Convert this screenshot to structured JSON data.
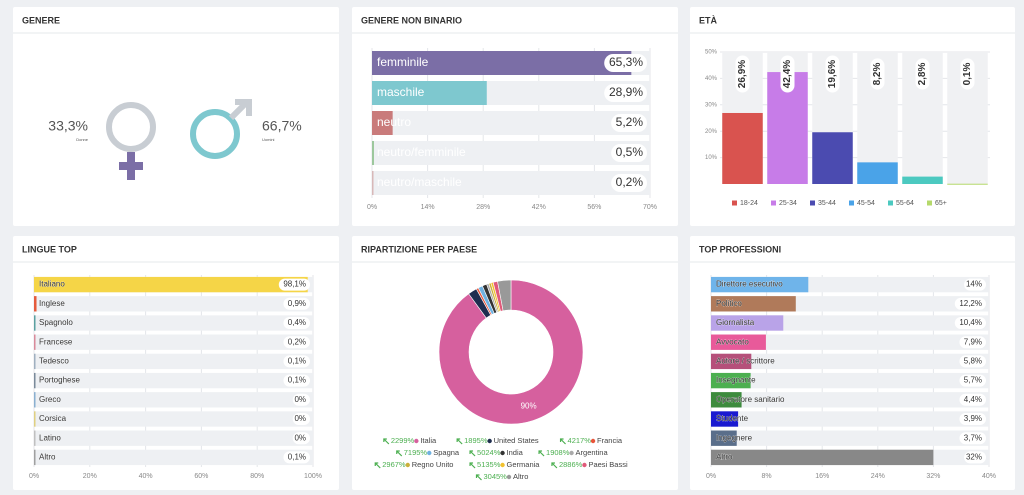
{
  "chart_data": [
    {
      "type": "pictogram",
      "title": "GENERE",
      "categories": [
        "Donne",
        "Uomini"
      ],
      "values": [
        33.3,
        66.7
      ],
      "value_labels": [
        "33,3%",
        "66,7%"
      ],
      "colors": [
        "#7b6ea6",
        "#7ec8cf"
      ]
    },
    {
      "type": "hbar",
      "title": "GENERE NON BINARIO",
      "categories": [
        "femminile",
        "maschile",
        "neutro",
        "neutro/femminile",
        "neutro/maschile"
      ],
      "values": [
        65.3,
        28.9,
        5.2,
        0.5,
        0.2
      ],
      "value_labels": [
        "65,3%",
        "28,9%",
        "5,2%",
        "0,5%",
        "0,2%"
      ],
      "colors": [
        "#7b6ea6",
        "#7ec8cf",
        "#c97b7b",
        "#9cc79c",
        "#d8b8b8"
      ],
      "xlim": [
        0,
        70
      ],
      "xticks": [
        {
          "value": 0,
          "label": "0%"
        },
        {
          "value": 14,
          "label": "14%"
        },
        {
          "value": 28,
          "label": "28%"
        },
        {
          "value": 42,
          "label": "42%"
        },
        {
          "value": 56,
          "label": "56%"
        },
        {
          "value": 70,
          "label": "70%"
        }
      ]
    },
    {
      "type": "bar",
      "title": "ETÀ",
      "categories": [
        "18-24",
        "25-34",
        "35-44",
        "45-54",
        "55-64",
        "65+"
      ],
      "values": [
        26.9,
        42.4,
        19.6,
        8.2,
        2.8,
        0.1
      ],
      "value_labels": [
        "26,9%",
        "42,4%",
        "19,6%",
        "8,2%",
        "2,8%",
        "0,1%"
      ],
      "colors": [
        "#d9534f",
        "#c77ce8",
        "#4b4bb0",
        "#4aa3e8",
        "#4cc9c0",
        "#b5d96b"
      ],
      "ylim": [
        0,
        50
      ],
      "yticks": [
        {
          "value": 10,
          "label": "10%"
        },
        {
          "value": 20,
          "label": "20%"
        },
        {
          "value": 30,
          "label": "30%"
        },
        {
          "value": 40,
          "label": "40%"
        },
        {
          "value": 50,
          "label": "50%"
        }
      ]
    },
    {
      "type": "hbar",
      "title": "LINGUE TOP",
      "categories": [
        "Italiano",
        "Inglese",
        "Spagnolo",
        "Francese",
        "Tedesco",
        "Portoghese",
        "Greco",
        "Corsica",
        "Latino",
        "Altro"
      ],
      "values": [
        98.1,
        0.9,
        0.4,
        0.2,
        0.1,
        0.1,
        0,
        0,
        0,
        0.1
      ],
      "value_labels": [
        "98,1%",
        "0,9%",
        "0,4%",
        "0,2%",
        "0,1%",
        "0,1%",
        "0%",
        "0%",
        "0%",
        "0,1%"
      ],
      "colors": [
        "#f5d547",
        "#e55b3c",
        "#5aa0a0",
        "#d98a9a",
        "#a0b0c0",
        "#7a8a9a",
        "#8ab0d0",
        "#e0d080",
        "#c0c0c0",
        "#a0a0a0"
      ],
      "xlim": [
        0,
        100
      ],
      "xticks": [
        {
          "value": 0,
          "label": "0%"
        },
        {
          "value": 20,
          "label": "20%"
        },
        {
          "value": 40,
          "label": "40%"
        },
        {
          "value": 60,
          "label": "60%"
        },
        {
          "value": 80,
          "label": "80%"
        },
        {
          "value": 100,
          "label": "100%"
        }
      ]
    },
    {
      "type": "donut",
      "title": "RIPARTIZIONE PER PAESE",
      "categories": [
        "Italia",
        "United States",
        "Francia",
        "Spagna",
        "India",
        "Argentina",
        "Regno Unito",
        "Germania",
        "Paesi Bassi",
        "Altro"
      ],
      "values": [
        90,
        2,
        0.5,
        1,
        1,
        0.5,
        0.5,
        0.5,
        1,
        3
      ],
      "value_labels": [
        "90%",
        null,
        null,
        null,
        null,
        null,
        null,
        null,
        null,
        null
      ],
      "trends": [
        "2299%",
        "1895%",
        "4217%",
        "7195%",
        "5024%",
        "1908%",
        "2967%",
        "5135%",
        "2886%",
        "3045%"
      ],
      "colors": [
        "#d6609e",
        "#1f2d4f",
        "#e8553a",
        "#6fb1e0",
        "#333333",
        "#aaaaaa",
        "#c9b03a",
        "#f2c12e",
        "#e05a7a",
        "#999999"
      ]
    },
    {
      "type": "hbar",
      "title": "TOP PROFESSIONI",
      "categories": [
        "Direttore esecutivo",
        "Politico",
        "Giornalista",
        "Avvocato",
        "Autore / scrittore",
        "Insegnante",
        "Operatore sanitario",
        "Studente",
        "Ingegnere",
        "Altro"
      ],
      "values": [
        14,
        12.2,
        10.4,
        7.9,
        5.8,
        5.7,
        4.4,
        3.9,
        3.7,
        32
      ],
      "value_labels": [
        "14%",
        "12,2%",
        "10,4%",
        "7,9%",
        "5,8%",
        "5,7%",
        "4,4%",
        "3,9%",
        "3,7%",
        "32%"
      ],
      "colors": [
        "#6fb4ea",
        "#b07a5a",
        "#b9a3e8",
        "#e85a9a",
        "#b5507a",
        "#4caf50",
        "#3d8b3d",
        "#1a1ad0",
        "#5a6e8a",
        "#888888"
      ],
      "xlim": [
        0,
        40
      ],
      "xticks": [
        {
          "value": 0,
          "label": "0%"
        },
        {
          "value": 8,
          "label": "8%"
        },
        {
          "value": 16,
          "label": "16%"
        },
        {
          "value": 24,
          "label": "24%"
        },
        {
          "value": 32,
          "label": "32%"
        },
        {
          "value": 40,
          "label": "40%"
        }
      ]
    }
  ]
}
